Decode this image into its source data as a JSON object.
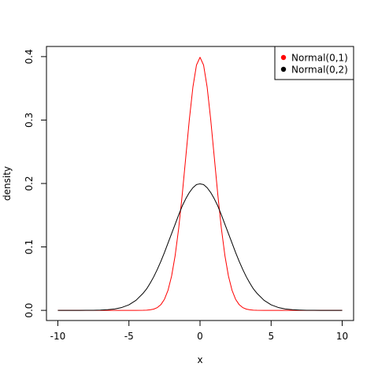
{
  "chart_data": {
    "type": "line",
    "title": "",
    "xlabel": "x",
    "ylabel": "density",
    "xlim": [
      -10.8,
      10.8
    ],
    "ylim": [
      -0.016,
      0.416
    ],
    "x_ticks": [
      -10,
      -5,
      0,
      5,
      10
    ],
    "x_tick_labels": [
      "-10",
      "-5",
      "0",
      "5",
      "10"
    ],
    "y_ticks": [
      0.0,
      0.1,
      0.2,
      0.3,
      0.4
    ],
    "y_tick_labels": [
      "0.0",
      "0.1",
      "0.2",
      "0.3",
      "0.4"
    ],
    "grid": false,
    "legend_position": "top-right",
    "x": [
      -10,
      -9.5,
      -9,
      -8.5,
      -8,
      -7.5,
      -7,
      -6.5,
      -6,
      -5.5,
      -5,
      -4.5,
      -4,
      -3.75,
      -3.5,
      -3.25,
      -3,
      -2.75,
      -2.5,
      -2.25,
      -2,
      -1.75,
      -1.5,
      -1.25,
      -1,
      -0.75,
      -0.5,
      -0.25,
      0,
      0.25,
      0.5,
      0.75,
      1,
      1.25,
      1.5,
      1.75,
      2,
      2.25,
      2.5,
      2.75,
      3,
      3.25,
      3.5,
      3.75,
      4,
      4.5,
      5,
      5.5,
      6,
      6.5,
      7,
      7.5,
      8,
      8.5,
      9,
      9.5,
      10
    ],
    "series": [
      {
        "name": "Normal(0,1)",
        "color": "#ff0000",
        "values": [
          0,
          0,
          0,
          0,
          0,
          0,
          0,
          0,
          0,
          0,
          1.5e-06,
          1.6e-05,
          0.000134,
          0.000353,
          0.000873,
          0.002029,
          0.004432,
          0.009094,
          0.017528,
          0.03174,
          0.053991,
          0.086277,
          0.129518,
          0.182649,
          0.241971,
          0.301137,
          0.352065,
          0.386668,
          0.398942,
          0.386668,
          0.352065,
          0.301137,
          0.241971,
          0.182649,
          0.129518,
          0.086277,
          0.053991,
          0.03174,
          0.017528,
          0.009094,
          0.004432,
          0.002029,
          0.000873,
          0.000353,
          0.000134,
          1.6e-05,
          1.5e-06,
          0,
          0,
          0,
          0,
          0,
          0,
          0,
          0,
          0,
          0
        ]
      },
      {
        "name": "Normal(0,2)",
        "color": "#000000",
        "values": [
          7e-07,
          2.4e-06,
          8e-06,
          2.46e-05,
          6.69e-05,
          0.00018,
          0.0004433,
          0.0010161,
          0.0022159,
          0.0045437,
          0.0087642,
          0.0158698,
          0.0269955,
          0.0340276,
          0.0431386,
          0.0531356,
          0.0647588,
          0.07744,
          0.0913245,
          0.1062015,
          0.1209854,
          0.1357185,
          0.1505806,
          0.1645867,
          0.1760327,
          0.1858316,
          0.1933341,
          0.1983016,
          0.1994711,
          0.1983016,
          0.1933341,
          0.1858316,
          0.1760327,
          0.1645867,
          0.1505806,
          0.1357185,
          0.1209854,
          0.1062015,
          0.0913245,
          0.07744,
          0.0647588,
          0.0531356,
          0.0431386,
          0.0340276,
          0.0269955,
          0.0158698,
          0.0087642,
          0.0045437,
          0.0022159,
          0.0010161,
          0.0004433,
          0.00018,
          6.69e-05,
          2.46e-05,
          8e-06,
          2.4e-06,
          7e-07
        ]
      }
    ]
  }
}
